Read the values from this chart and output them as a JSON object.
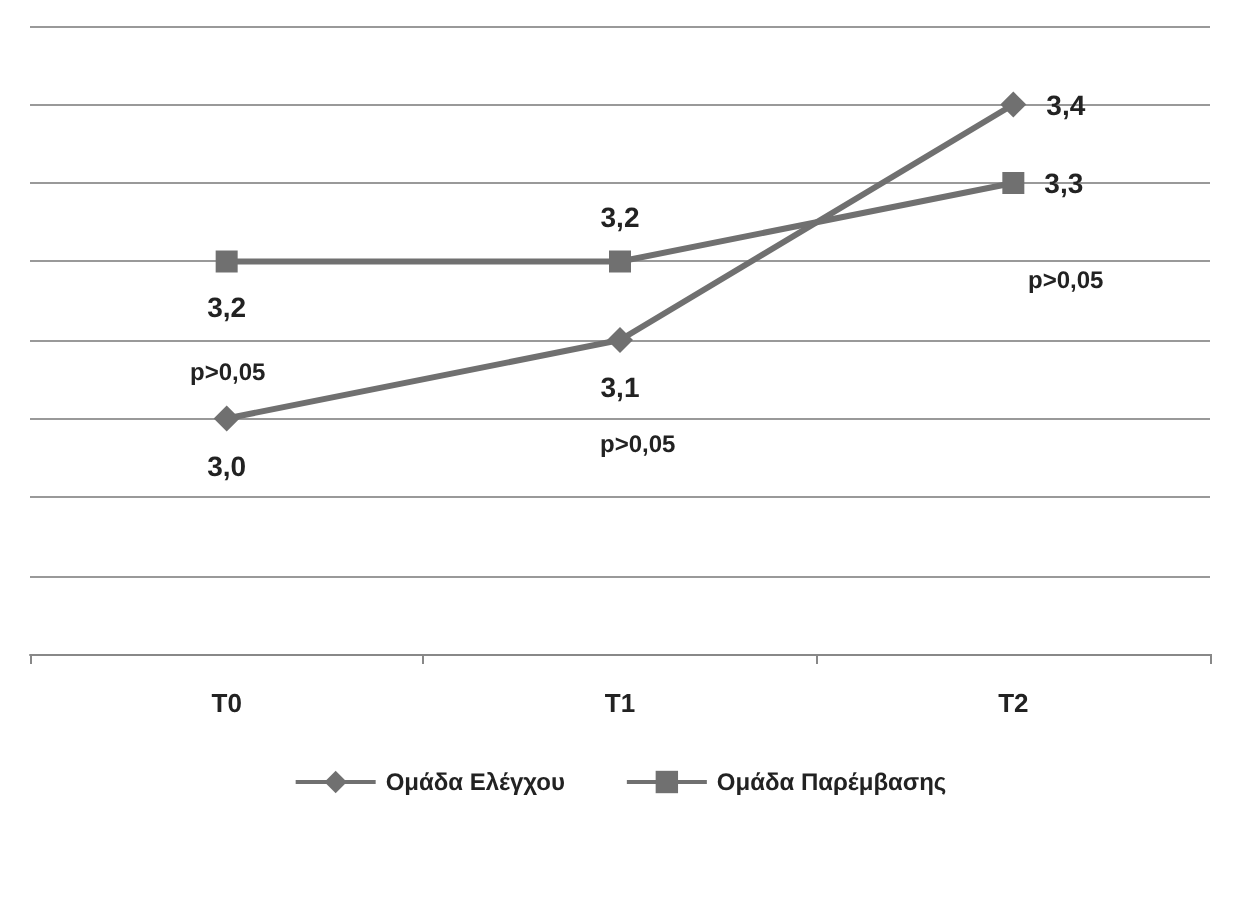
{
  "chart_data": {
    "type": "line",
    "categories": [
      "T0",
      "T1",
      "T2"
    ],
    "series": [
      {
        "name": "Ομάδα Ελέγχου",
        "color": "#707070",
        "marker": "diamond",
        "values": [
          3.0,
          3.1,
          3.4
        ],
        "value_labels": [
          "3,0",
          "3,1",
          "3,4"
        ]
      },
      {
        "name": "Ομάδα Παρέμβασης",
        "color": "#707070",
        "marker": "square",
        "values": [
          3.2,
          3.2,
          3.3
        ],
        "value_labels": [
          "3,2",
          "3,2",
          "3,3"
        ]
      }
    ],
    "ylim": [
      2.7,
      3.5
    ],
    "yticks": [
      {
        "value": 2.7,
        "label": null
      },
      {
        "value": 2.8,
        "label": null
      },
      {
        "value": 2.9,
        "label": null
      },
      {
        "value": 3.0,
        "label": null
      },
      {
        "value": 3.1,
        "label": null
      },
      {
        "value": 3.2,
        "label": null
      },
      {
        "value": 3.3,
        "label": null
      },
      {
        "value": 3.4,
        "label": null
      },
      {
        "value": 3.5,
        "label": null
      }
    ],
    "tick_labels": "x",
    "grid": "y",
    "legend": "bottom",
    "annotations": [
      "p>0,05",
      "p>0,05",
      "p>0,05"
    ]
  }
}
